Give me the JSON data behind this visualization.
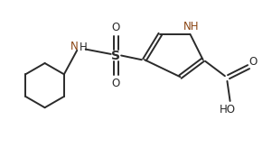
{
  "bg_color": "#ffffff",
  "line_color": "#2a2a2a",
  "nh_color": "#8B4513",
  "bond_lw": 1.4,
  "font_size": 8.5,
  "fig_width": 3.01,
  "fig_height": 1.64,
  "dpi": 100,
  "xlim": [
    0,
    9.5
  ],
  "ylim": [
    0,
    5.2
  ]
}
